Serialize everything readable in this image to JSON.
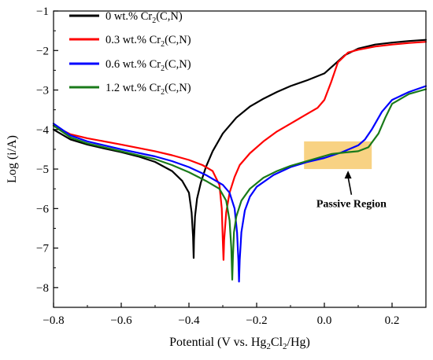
{
  "chart_data": {
    "type": "line",
    "title": "",
    "xlabel": "Potential (V vs. Hg2Cl2/Hg)",
    "xlabel_parts": {
      "pre": "Potential (V vs. Hg",
      "sub1": "2",
      "mid": "Cl",
      "sub2": "2",
      "post": "/Hg)"
    },
    "ylabel": "Log (i/A)",
    "xlim": [
      -0.8,
      0.3
    ],
    "ylim": [
      -8.5,
      -1
    ],
    "xticks": [
      -0.8,
      -0.6,
      -0.4,
      -0.2,
      0.0,
      0.2
    ],
    "xtick_labels": [
      "−0.8",
      "−0.6",
      "−0.4",
      "−0.2",
      "0.0",
      "0.2"
    ],
    "yticks": [
      -1,
      -2,
      -3,
      -4,
      -5,
      -6,
      -7,
      -8
    ],
    "ytick_labels": [
      "−1",
      "−2",
      "−3",
      "−4",
      "−5",
      "−6",
      "−7",
      "−8"
    ],
    "legend_position": "top-left",
    "series": [
      {
        "name": "0 wt.% Cr2(C,N)",
        "label_parts": {
          "pre": "0 wt.% Cr",
          "sub": "2",
          "post": "(C,N)"
        },
        "color": "#000000",
        "x": [
          -0.8,
          -0.75,
          -0.7,
          -0.65,
          -0.6,
          -0.55,
          -0.5,
          -0.45,
          -0.42,
          -0.4,
          -0.392,
          -0.388,
          -0.386,
          -0.385,
          -0.382,
          -0.376,
          -0.365,
          -0.35,
          -0.33,
          -0.3,
          -0.26,
          -0.22,
          -0.18,
          -0.14,
          -0.1,
          -0.05,
          0.0,
          0.03,
          0.06,
          0.1,
          0.15,
          0.2,
          0.25,
          0.3
        ],
        "y": [
          -4.0,
          -4.25,
          -4.38,
          -4.48,
          -4.57,
          -4.68,
          -4.82,
          -5.05,
          -5.3,
          -5.6,
          -6.1,
          -6.7,
          -7.25,
          -6.8,
          -6.2,
          -5.75,
          -5.35,
          -4.95,
          -4.55,
          -4.1,
          -3.7,
          -3.42,
          -3.22,
          -3.05,
          -2.9,
          -2.75,
          -2.58,
          -2.35,
          -2.12,
          -1.95,
          -1.85,
          -1.8,
          -1.76,
          -1.73
        ]
      },
      {
        "name": "0.3 wt.% Cr2(C,N)",
        "label_parts": {
          "pre": "0.3 wt.% Cr",
          "sub": "2",
          "post": "(C,N)"
        },
        "color": "#ff0000",
        "x": [
          -0.8,
          -0.75,
          -0.7,
          -0.6,
          -0.5,
          -0.45,
          -0.4,
          -0.36,
          -0.33,
          -0.31,
          -0.303,
          -0.3,
          -0.298,
          -0.296,
          -0.29,
          -0.28,
          -0.265,
          -0.25,
          -0.22,
          -0.18,
          -0.14,
          -0.1,
          -0.06,
          -0.02,
          0.0,
          0.02,
          0.04,
          0.07,
          0.1,
          0.15,
          0.2,
          0.25,
          0.3
        ],
        "y": [
          -3.9,
          -4.12,
          -4.22,
          -4.38,
          -4.55,
          -4.65,
          -4.77,
          -4.9,
          -5.05,
          -5.4,
          -6.0,
          -6.8,
          -7.3,
          -6.8,
          -6.1,
          -5.6,
          -5.2,
          -4.9,
          -4.6,
          -4.3,
          -4.05,
          -3.85,
          -3.65,
          -3.45,
          -3.25,
          -2.8,
          -2.3,
          -2.05,
          -1.98,
          -1.9,
          -1.85,
          -1.81,
          -1.78
        ]
      },
      {
        "name": "0.6 wt.% Cr2(C,N)",
        "label_parts": {
          "pre": "0.6 wt.% Cr",
          "sub": "2",
          "post": "(C,N)"
        },
        "color": "#0000ff",
        "x": [
          -0.8,
          -0.75,
          -0.7,
          -0.6,
          -0.5,
          -0.45,
          -0.4,
          -0.35,
          -0.3,
          -0.28,
          -0.265,
          -0.258,
          -0.254,
          -0.252,
          -0.25,
          -0.245,
          -0.235,
          -0.22,
          -0.2,
          -0.15,
          -0.1,
          -0.05,
          0.0,
          0.05,
          0.1,
          0.12,
          0.14,
          0.17,
          0.2,
          0.25,
          0.3
        ],
        "y": [
          -3.85,
          -4.15,
          -4.3,
          -4.5,
          -4.68,
          -4.8,
          -4.95,
          -5.15,
          -5.4,
          -5.6,
          -6.0,
          -6.6,
          -7.3,
          -7.85,
          -7.3,
          -6.6,
          -6.05,
          -5.7,
          -5.45,
          -5.15,
          -4.95,
          -4.82,
          -4.72,
          -4.58,
          -4.4,
          -4.25,
          -4.0,
          -3.55,
          -3.25,
          -3.05,
          -2.9
        ]
      },
      {
        "name": "1.2 wt.% Cr2(C,N)",
        "label_parts": {
          "pre": "1.2 wt.% Cr",
          "sub": "2",
          "post": "(C,N)"
        },
        "color": "#1a7a1a",
        "x": [
          -0.8,
          -0.75,
          -0.7,
          -0.6,
          -0.5,
          -0.45,
          -0.4,
          -0.35,
          -0.31,
          -0.29,
          -0.28,
          -0.275,
          -0.272,
          -0.27,
          -0.267,
          -0.26,
          -0.245,
          -0.22,
          -0.18,
          -0.14,
          -0.1,
          -0.06,
          -0.02,
          0.02,
          0.06,
          0.1,
          0.13,
          0.16,
          0.18,
          0.2,
          0.25,
          0.3
        ],
        "y": [
          -3.9,
          -4.2,
          -4.35,
          -4.55,
          -4.75,
          -4.9,
          -5.08,
          -5.3,
          -5.5,
          -5.8,
          -6.3,
          -7.0,
          -7.8,
          -7.2,
          -6.6,
          -6.2,
          -5.8,
          -5.5,
          -5.22,
          -5.05,
          -4.92,
          -4.82,
          -4.72,
          -4.62,
          -4.58,
          -4.55,
          -4.45,
          -4.1,
          -3.7,
          -3.35,
          -3.1,
          -2.98
        ]
      }
    ],
    "annotations": [
      {
        "text": "Passive Region",
        "box_x": [
          -0.06,
          0.14
        ],
        "box_y": [
          -5.0,
          -4.3
        ],
        "box_color": "#f5c35a",
        "arrow_from": [
          0.08,
          -5.65
        ],
        "arrow_to": [
          0.07,
          -5.0
        ]
      }
    ]
  }
}
